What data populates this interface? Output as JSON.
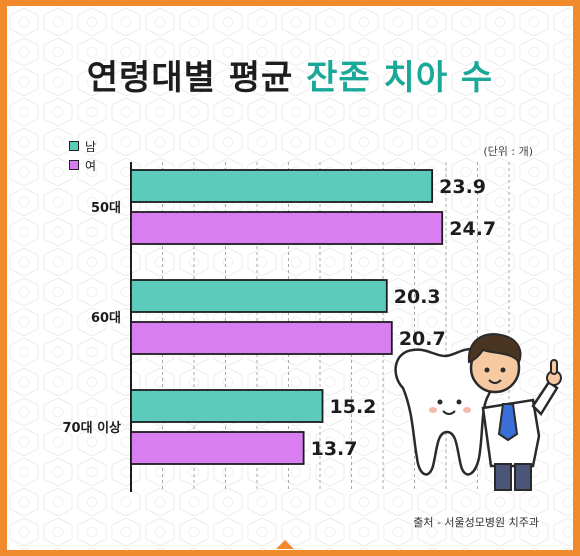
{
  "title": {
    "main": "연령대별 평균",
    "accent": "잔존 치아 수"
  },
  "legend": [
    {
      "label": "남",
      "color": "#5ccbbb"
    },
    {
      "label": "여",
      "color": "#d97ef0"
    }
  ],
  "unit": "(단위 : 개)",
  "source": "출처 - 서울성모병원 치주과",
  "colors": {
    "accent": "#1aa899",
    "frame": "#f08a2c",
    "male": "#5ccbbb",
    "female": "#d97ef0"
  },
  "chart_data": {
    "type": "bar",
    "orientation": "horizontal",
    "categories": [
      "50대",
      "60대",
      "70대 이상"
    ],
    "series": [
      {
        "name": "남",
        "values": [
          23.9,
          20.3,
          15.2
        ]
      },
      {
        "name": "여",
        "values": [
          24.7,
          20.7,
          13.7
        ]
      }
    ],
    "xlim": [
      0,
      30
    ],
    "grid": true,
    "legend_position": "top-left"
  }
}
